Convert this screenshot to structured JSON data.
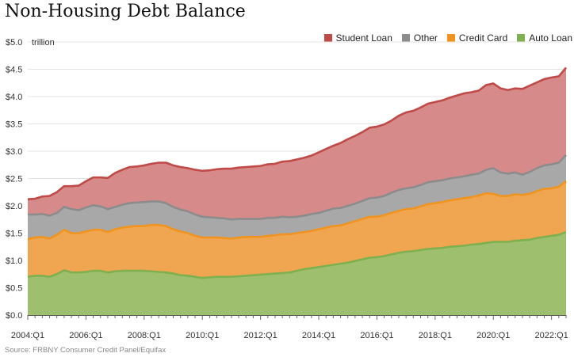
{
  "title": "Non-Housing Debt Balance",
  "source": "Source: FRBNY Consumer Credit Panel/Equifax",
  "chart_data": {
    "type": "area",
    "stacked": true,
    "title": "Non-Housing Debt Balance",
    "unit_label": "trillion",
    "ylim": [
      0,
      5.0
    ],
    "y_ticks": [
      "$0.0",
      "$0.5",
      "$1.0",
      "$1.5",
      "$2.0",
      "$2.5",
      "$3.0",
      "$3.5",
      "$4.0",
      "$4.5",
      "$5.0"
    ],
    "x_ticks": [
      "2004:Q1",
      "2006:Q1",
      "2008:Q1",
      "2010:Q1",
      "2012:Q1",
      "2014:Q1",
      "2016:Q1",
      "2018:Q1",
      "2020:Q1",
      "2022:Q1"
    ],
    "grid": true,
    "legend_position": "top-right",
    "legend_order": [
      "Student Loan",
      "Other",
      "Credit Card",
      "Auto Loan"
    ],
    "x": [
      "2004:Q1",
      "2004:Q2",
      "2004:Q3",
      "2004:Q4",
      "2005:Q1",
      "2005:Q2",
      "2005:Q3",
      "2005:Q4",
      "2006:Q1",
      "2006:Q2",
      "2006:Q3",
      "2006:Q4",
      "2007:Q1",
      "2007:Q2",
      "2007:Q3",
      "2007:Q4",
      "2008:Q1",
      "2008:Q2",
      "2008:Q3",
      "2008:Q4",
      "2009:Q1",
      "2009:Q2",
      "2009:Q3",
      "2009:Q4",
      "2010:Q1",
      "2010:Q2",
      "2010:Q3",
      "2010:Q4",
      "2011:Q1",
      "2011:Q2",
      "2011:Q3",
      "2011:Q4",
      "2012:Q1",
      "2012:Q2",
      "2012:Q3",
      "2012:Q4",
      "2013:Q1",
      "2013:Q2",
      "2013:Q3",
      "2013:Q4",
      "2014:Q1",
      "2014:Q2",
      "2014:Q3",
      "2014:Q4",
      "2015:Q1",
      "2015:Q2",
      "2015:Q3",
      "2015:Q4",
      "2016:Q1",
      "2016:Q2",
      "2016:Q3",
      "2016:Q4",
      "2017:Q1",
      "2017:Q2",
      "2017:Q3",
      "2017:Q4",
      "2018:Q1",
      "2018:Q2",
      "2018:Q3",
      "2018:Q4",
      "2019:Q1",
      "2019:Q2",
      "2019:Q3",
      "2019:Q4",
      "2020:Q1",
      "2020:Q2",
      "2020:Q3",
      "2020:Q4",
      "2021:Q1",
      "2021:Q2",
      "2021:Q3",
      "2021:Q4",
      "2022:Q1",
      "2022:Q2",
      "2022:Q3"
    ],
    "series": [
      {
        "name": "Auto Loan",
        "color": "#9dbf6e",
        "line_color": "#7fb04f",
        "values": [
          0.7,
          0.72,
          0.72,
          0.7,
          0.75,
          0.82,
          0.78,
          0.78,
          0.79,
          0.81,
          0.81,
          0.78,
          0.8,
          0.81,
          0.81,
          0.81,
          0.81,
          0.8,
          0.79,
          0.78,
          0.76,
          0.73,
          0.72,
          0.7,
          0.68,
          0.69,
          0.7,
          0.7,
          0.7,
          0.71,
          0.72,
          0.73,
          0.74,
          0.75,
          0.76,
          0.77,
          0.78,
          0.81,
          0.84,
          0.86,
          0.88,
          0.9,
          0.92,
          0.94,
          0.96,
          0.99,
          1.02,
          1.05,
          1.06,
          1.08,
          1.11,
          1.14,
          1.16,
          1.17,
          1.19,
          1.21,
          1.22,
          1.23,
          1.25,
          1.26,
          1.27,
          1.29,
          1.3,
          1.32,
          1.34,
          1.34,
          1.34,
          1.36,
          1.37,
          1.38,
          1.41,
          1.43,
          1.45,
          1.47,
          1.52
        ]
      },
      {
        "name": "Credit Card",
        "color": "#f0a550",
        "line_color": "#f0941f",
        "values": [
          0.69,
          0.7,
          0.71,
          0.7,
          0.72,
          0.74,
          0.72,
          0.72,
          0.74,
          0.75,
          0.75,
          0.74,
          0.77,
          0.79,
          0.81,
          0.82,
          0.82,
          0.85,
          0.86,
          0.85,
          0.81,
          0.8,
          0.78,
          0.75,
          0.74,
          0.73,
          0.72,
          0.71,
          0.7,
          0.71,
          0.71,
          0.7,
          0.69,
          0.7,
          0.7,
          0.71,
          0.7,
          0.69,
          0.68,
          0.68,
          0.69,
          0.7,
          0.71,
          0.7,
          0.72,
          0.73,
          0.74,
          0.75,
          0.74,
          0.75,
          0.76,
          0.77,
          0.78,
          0.78,
          0.8,
          0.82,
          0.83,
          0.84,
          0.85,
          0.86,
          0.87,
          0.87,
          0.89,
          0.91,
          0.88,
          0.84,
          0.84,
          0.85,
          0.83,
          0.84,
          0.86,
          0.88,
          0.87,
          0.88,
          0.93
        ]
      },
      {
        "name": "Other",
        "color": "#a8a8a8",
        "line_color": "#8c8c8c",
        "values": [
          0.45,
          0.42,
          0.42,
          0.42,
          0.4,
          0.42,
          0.44,
          0.42,
          0.44,
          0.45,
          0.43,
          0.42,
          0.41,
          0.42,
          0.43,
          0.43,
          0.44,
          0.43,
          0.43,
          0.42,
          0.41,
          0.4,
          0.4,
          0.39,
          0.38,
          0.37,
          0.36,
          0.36,
          0.35,
          0.34,
          0.33,
          0.33,
          0.33,
          0.33,
          0.32,
          0.32,
          0.31,
          0.3,
          0.3,
          0.31,
          0.3,
          0.31,
          0.32,
          0.32,
          0.32,
          0.32,
          0.33,
          0.34,
          0.35,
          0.35,
          0.37,
          0.38,
          0.38,
          0.39,
          0.39,
          0.4,
          0.4,
          0.4,
          0.4,
          0.4,
          0.4,
          0.41,
          0.4,
          0.43,
          0.47,
          0.43,
          0.41,
          0.4,
          0.37,
          0.4,
          0.42,
          0.43,
          0.44,
          0.44,
          0.48
        ]
      },
      {
        "name": "Student Loan",
        "color": "#d68a89",
        "line_color": "#c04a48",
        "values": [
          0.28,
          0.29,
          0.32,
          0.36,
          0.38,
          0.38,
          0.42,
          0.45,
          0.48,
          0.51,
          0.53,
          0.57,
          0.62,
          0.64,
          0.66,
          0.66,
          0.67,
          0.69,
          0.71,
          0.74,
          0.76,
          0.78,
          0.79,
          0.82,
          0.84,
          0.86,
          0.89,
          0.91,
          0.93,
          0.94,
          0.95,
          0.96,
          0.97,
          0.98,
          0.99,
          1.01,
          1.03,
          1.05,
          1.06,
          1.07,
          1.11,
          1.13,
          1.15,
          1.19,
          1.22,
          1.24,
          1.26,
          1.29,
          1.3,
          1.31,
          1.32,
          1.36,
          1.39,
          1.4,
          1.42,
          1.44,
          1.45,
          1.46,
          1.48,
          1.5,
          1.52,
          1.51,
          1.52,
          1.55,
          1.55,
          1.54,
          1.53,
          1.54,
          1.57,
          1.58,
          1.57,
          1.58,
          1.59,
          1.58,
          1.6
        ]
      }
    ]
  }
}
